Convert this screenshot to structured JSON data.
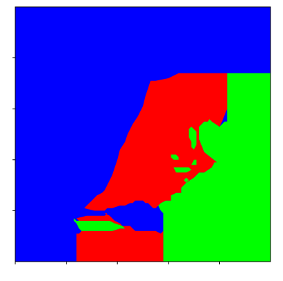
{
  "chart_data": {
    "type": "heatmap",
    "title": "",
    "xlabel": "",
    "ylabel": "",
    "xlim": [
      0,
      100
    ],
    "ylim": [
      0,
      100
    ],
    "x_ticks": [
      0,
      20,
      40,
      60,
      80
    ],
    "y_ticks": [
      20,
      40,
      60,
      80
    ],
    "tick_labels_shown": false,
    "grid": false,
    "legend": "none",
    "classes": [
      {
        "name": "class-blue",
        "color": "#0000ff"
      },
      {
        "name": "class-red",
        "color": "#ff0000"
      },
      {
        "name": "class-green",
        "color": "#00ff00"
      }
    ],
    "background_class": 0,
    "regions": [
      {
        "class": 2,
        "name": "green-region",
        "points": [
          [
            83,
            75
          ],
          [
            83,
            74
          ],
          [
            100,
            74
          ],
          [
            100,
            0
          ],
          [
            58,
            0
          ],
          [
            58,
            19
          ],
          [
            57,
            20
          ],
          [
            56,
            22
          ],
          [
            57,
            23
          ],
          [
            59,
            24
          ],
          [
            61,
            24
          ],
          [
            61,
            26
          ],
          [
            63,
            27
          ],
          [
            65,
            27
          ],
          [
            65,
            29
          ],
          [
            67,
            31
          ],
          [
            70,
            33
          ],
          [
            72,
            35
          ],
          [
            74,
            35
          ],
          [
            77,
            37
          ],
          [
            78,
            39
          ],
          [
            79,
            39
          ],
          [
            74,
            43
          ],
          [
            72,
            48
          ],
          [
            72,
            53
          ],
          [
            74,
            55
          ],
          [
            77,
            55
          ],
          [
            80,
            53
          ],
          [
            82,
            55
          ],
          [
            83,
            55
          ]
        ]
      },
      {
        "class": 1,
        "name": "red-region",
        "points": [
          [
            53,
            71
          ],
          [
            55,
            71
          ],
          [
            60,
            72
          ],
          [
            64,
            74
          ],
          [
            68,
            74
          ],
          [
            73,
            74
          ],
          [
            83,
            74
          ],
          [
            83,
            60
          ],
          [
            81,
            55
          ],
          [
            80,
            53
          ],
          [
            77,
            55
          ],
          [
            74,
            55
          ],
          [
            72,
            53
          ],
          [
            72,
            48
          ],
          [
            74,
            43
          ],
          [
            79,
            39
          ],
          [
            78,
            39
          ],
          [
            77,
            37
          ],
          [
            74,
            35
          ],
          [
            72,
            35
          ],
          [
            70,
            33
          ],
          [
            67,
            31
          ],
          [
            65,
            29
          ],
          [
            65,
            27
          ],
          [
            63,
            27
          ],
          [
            61,
            26
          ],
          [
            61,
            24
          ],
          [
            59,
            24
          ],
          [
            57,
            23
          ],
          [
            56,
            22
          ],
          [
            55,
            21
          ],
          [
            54,
            21
          ],
          [
            53,
            22
          ],
          [
            52,
            23
          ],
          [
            51,
            23
          ],
          [
            50,
            24
          ],
          [
            49,
            24
          ],
          [
            48,
            24
          ],
          [
            47,
            24
          ],
          [
            46,
            23
          ],
          [
            45,
            23
          ],
          [
            43,
            22
          ],
          [
            41,
            22
          ],
          [
            38,
            21
          ],
          [
            36,
            21
          ],
          [
            35,
            20
          ],
          [
            33,
            20
          ],
          [
            31,
            20
          ],
          [
            27,
            21
          ],
          [
            27,
            20
          ],
          [
            29,
            20
          ],
          [
            31,
            19
          ],
          [
            33,
            19
          ],
          [
            35,
            19
          ],
          [
            37,
            18
          ],
          [
            38,
            17
          ],
          [
            39,
            16
          ],
          [
            41,
            15
          ],
          [
            42,
            14
          ],
          [
            44,
            14
          ],
          [
            45,
            14
          ],
          [
            46,
            13
          ],
          [
            47,
            12
          ],
          [
            48,
            12
          ],
          [
            55,
            12
          ],
          [
            57,
            11
          ],
          [
            58,
            12
          ],
          [
            58,
            0
          ],
          [
            24,
            0
          ],
          [
            24,
            11
          ],
          [
            25,
            11
          ],
          [
            26,
            12
          ],
          [
            30,
            12
          ],
          [
            33,
            12
          ],
          [
            38,
            12
          ],
          [
            41,
            13
          ],
          [
            43,
            13
          ],
          [
            42,
            14
          ],
          [
            39,
            15
          ],
          [
            37,
            16
          ],
          [
            34,
            16
          ],
          [
            31,
            16
          ],
          [
            28,
            16
          ],
          [
            26,
            16
          ],
          [
            25,
            16
          ],
          [
            24,
            17
          ],
          [
            28,
            18
          ],
          [
            31,
            18
          ],
          [
            33,
            18
          ],
          [
            35,
            18
          ],
          [
            36,
            19
          ],
          [
            33,
            19
          ],
          [
            31,
            19
          ],
          [
            29,
            20
          ],
          [
            27,
            20
          ],
          [
            27,
            21
          ],
          [
            28,
            22
          ],
          [
            29,
            23
          ],
          [
            30,
            24
          ],
          [
            31,
            25
          ],
          [
            32,
            26
          ],
          [
            34,
            27
          ],
          [
            35,
            28
          ],
          [
            36,
            30
          ],
          [
            37,
            32
          ],
          [
            38,
            34
          ],
          [
            39,
            37
          ],
          [
            40,
            40
          ],
          [
            41,
            44
          ],
          [
            43,
            47
          ],
          [
            44,
            50
          ],
          [
            46,
            54
          ],
          [
            48,
            57
          ],
          [
            50,
            61
          ],
          [
            51,
            65
          ],
          [
            52,
            68
          ],
          [
            53,
            71
          ]
        ]
      },
      {
        "class": 2,
        "name": "green-strip",
        "points": [
          [
            27,
            16
          ],
          [
            26,
            16
          ],
          [
            25,
            16
          ],
          [
            24,
            16
          ],
          [
            23,
            17
          ],
          [
            23,
            16
          ],
          [
            24,
            15
          ],
          [
            25,
            13
          ],
          [
            26,
            12
          ],
          [
            30,
            12
          ],
          [
            33,
            12
          ],
          [
            38,
            12
          ],
          [
            41,
            13
          ],
          [
            43,
            13
          ],
          [
            42,
            14
          ],
          [
            39,
            15
          ],
          [
            37,
            16
          ],
          [
            34,
            16
          ],
          [
            31,
            16
          ],
          [
            28,
            16
          ]
        ]
      },
      {
        "class": 2,
        "name": "green-patch-1",
        "points": [
          [
            68,
            52
          ],
          [
            69,
            53
          ],
          [
            70,
            52
          ],
          [
            71,
            51
          ],
          [
            71,
            46
          ],
          [
            70,
            44
          ],
          [
            69,
            45
          ],
          [
            69,
            47
          ],
          [
            68,
            49
          ]
        ]
      },
      {
        "class": 2,
        "name": "green-patch-2",
        "points": [
          [
            62,
            37
          ],
          [
            64,
            37
          ],
          [
            66,
            37
          ],
          [
            68,
            37
          ],
          [
            69,
            36
          ],
          [
            67,
            35
          ],
          [
            65,
            35
          ],
          [
            63,
            35
          ]
        ]
      },
      {
        "class": 2,
        "name": "green-patch-3",
        "points": [
          [
            61,
            41
          ],
          [
            61,
            42
          ],
          [
            63,
            42
          ],
          [
            64,
            41
          ],
          [
            64,
            40
          ],
          [
            62,
            40
          ]
        ]
      },
      {
        "class": 2,
        "name": "green-patch-4",
        "points": [
          [
            86,
            56
          ],
          [
            87,
            57
          ],
          [
            87,
            54
          ],
          [
            86,
            54
          ]
        ]
      },
      {
        "class": 2,
        "name": "green-patch-5",
        "points": [
          [
            75,
            54
          ],
          [
            76,
            56
          ],
          [
            77,
            55
          ],
          [
            76,
            53
          ]
        ]
      },
      {
        "class": 2,
        "name": "green-patch-6",
        "points": [
          [
            69,
            38
          ],
          [
            70,
            40
          ],
          [
            71,
            40
          ],
          [
            71,
            38
          ]
        ]
      },
      {
        "class": 2,
        "name": "green-patch-7",
        "points": [
          [
            66,
            32
          ],
          [
            67,
            33
          ],
          [
            68,
            32
          ],
          [
            67,
            31
          ]
        ]
      }
    ]
  }
}
